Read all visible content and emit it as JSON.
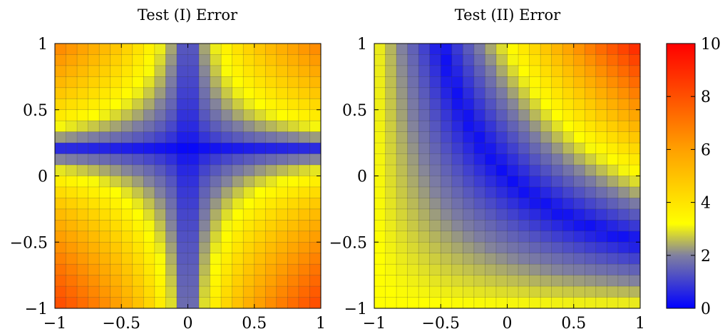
{
  "chart_data": [
    {
      "type": "heatmap",
      "title": "Test (I) Error",
      "xlim": [
        -1,
        1
      ],
      "ylim": [
        -1,
        1
      ],
      "x_ticks": [
        "−1",
        "−0.5",
        "0",
        "0.5",
        "1"
      ],
      "y_ticks": [
        "−1",
        "−0.5",
        "0",
        "0.5",
        "1"
      ],
      "grid_cells": 24,
      "z_model": "product",
      "z_params": {
        "x0": 0.0,
        "y0": 0.2,
        "scale": 7.6
      },
      "z_range": [
        0,
        10
      ]
    },
    {
      "type": "heatmap",
      "title": "Test (II) Error",
      "xlim": [
        -1,
        1
      ],
      "ylim": [
        -1,
        1
      ],
      "x_ticks": [
        "−1",
        "−0.5",
        "0",
        "0.5",
        "1"
      ],
      "y_ticks": [
        "−1",
        "−0.5",
        "0",
        "0.5",
        "1"
      ],
      "grid_cells": 24,
      "z_model": "hyperbola",
      "z_params": {
        "offset": 0.22,
        "scale": 5.5
      },
      "z_range": [
        0,
        10
      ]
    }
  ],
  "colorbar": {
    "range": [
      0,
      10
    ],
    "ticks": [
      "0",
      "2",
      "4",
      "6",
      "8",
      "10"
    ],
    "stops": [
      {
        "v": 0,
        "color": "#0000ff"
      },
      {
        "v": 2,
        "color": "#8080a0"
      },
      {
        "v": 3.2,
        "color": "#ffff00"
      },
      {
        "v": 6,
        "color": "#ffa000"
      },
      {
        "v": 10,
        "color": "#ff0000"
      }
    ]
  }
}
